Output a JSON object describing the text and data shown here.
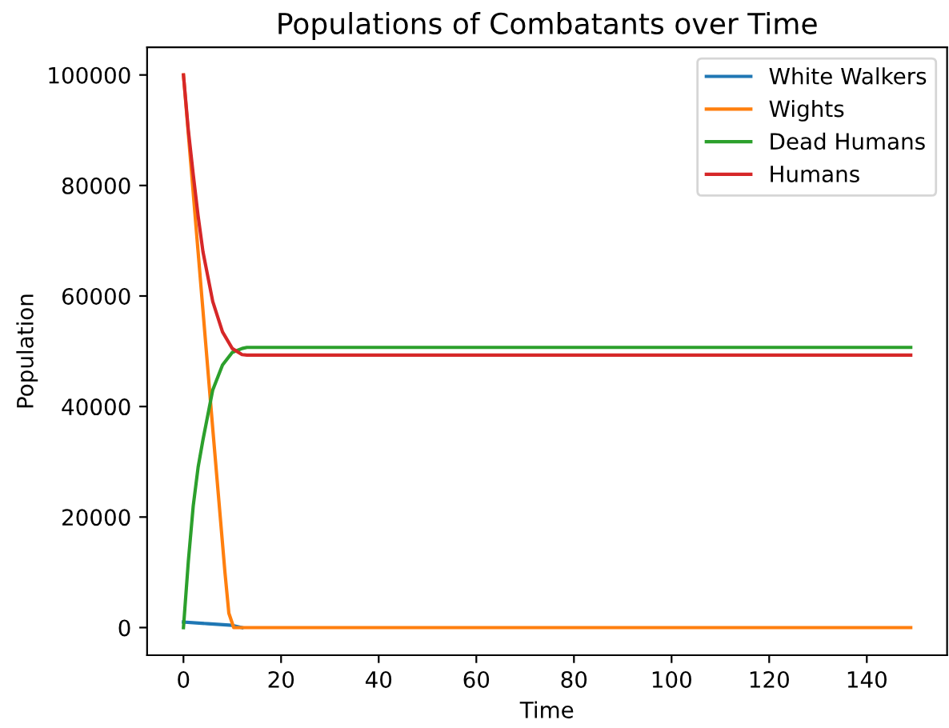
{
  "chart_data": {
    "type": "line",
    "title": "Populations of Combatants over Time",
    "xlabel": "Time",
    "ylabel": "Population",
    "xlim": [
      -7.45,
      156.45
    ],
    "xticks": [
      0,
      20,
      40,
      60,
      80,
      100,
      120,
      140
    ],
    "ylim": [
      -5000,
      105000
    ],
    "yticks": [
      0,
      20000,
      40000,
      60000,
      80000,
      100000
    ],
    "grid": false,
    "legend": "top right",
    "marker": "none",
    "line_style": "solid",
    "series": [
      {
        "name": "White Walkers",
        "color": "#1f77b4",
        "x": [
          0,
          5,
          10,
          12
        ],
        "values": [
          1000,
          700,
          400,
          0
        ]
      },
      {
        "name": "Wights",
        "color": "#ff7f0e",
        "x": [
          0,
          3,
          6,
          8.5,
          9.3,
          10.3,
          149
        ],
        "values": [
          100000,
          68000,
          36000,
          10000,
          2600,
          0,
          0
        ]
      },
      {
        "name": "Dead Humans",
        "color": "#2ca02c",
        "x": [
          0,
          1,
          2,
          3,
          4,
          6,
          8,
          10,
          12,
          13,
          149
        ],
        "values": [
          0,
          12000,
          22000,
          29000,
          34000,
          43000,
          47500,
          49800,
          50500,
          50700,
          50700
        ]
      },
      {
        "name": "Humans",
        "color": "#d62728",
        "x": [
          0,
          1,
          2,
          3,
          4,
          6,
          8,
          10,
          12,
          13,
          149
        ],
        "values": [
          100000,
          90000,
          82000,
          74500,
          68000,
          59000,
          53500,
          50500,
          49400,
          49300,
          49300
        ]
      }
    ]
  }
}
